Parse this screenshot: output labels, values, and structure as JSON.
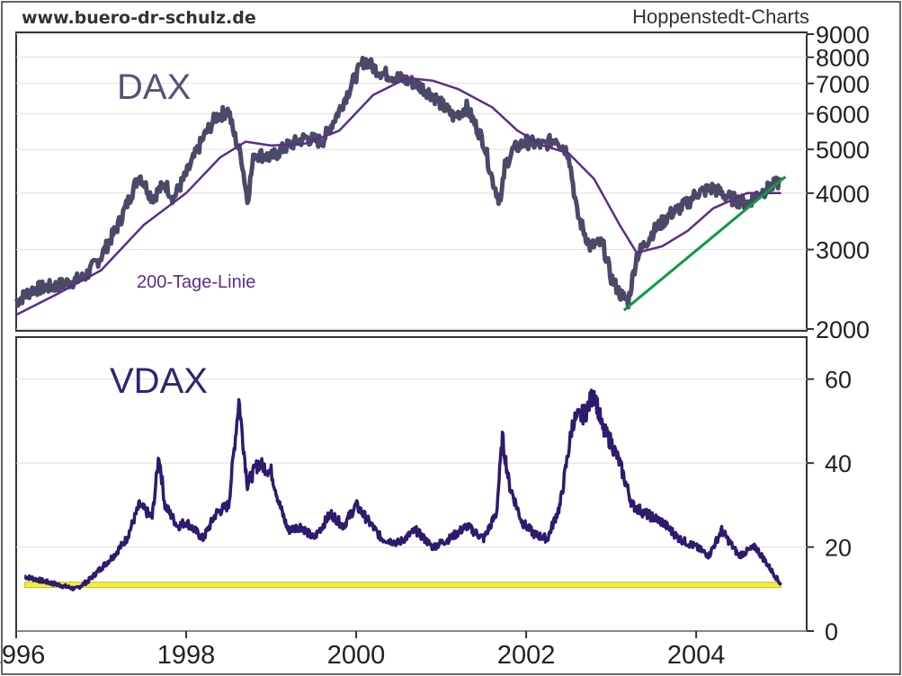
{
  "header": {
    "site": "www.buero-dr-schulz.de",
    "source": "Hoppenstedt-Charts"
  },
  "colors": {
    "dax_line": "#4a4a68",
    "ma_line": "#5a2e8a",
    "vdax_line": "#2e1a6e",
    "trend_line": "#119944",
    "floor_band": "#f2ee3a",
    "grid": "#dddddd",
    "frame": "#333333"
  },
  "x_axis": {
    "ticks": [
      "1996",
      "1998",
      "2000",
      "2002",
      "2004"
    ],
    "range": [
      1996,
      2005.3
    ]
  },
  "chart_data": [
    {
      "type": "line",
      "title": "DAX",
      "y_scale": "log",
      "ylim": [
        2000,
        9000
      ],
      "y_ticks": [
        "2000",
        "3000",
        "4000",
        "5000",
        "6000",
        "7000",
        "8000",
        "9000"
      ],
      "grid": true,
      "annotation": "200-Tage-Linie",
      "series": [
        {
          "name": "DAX",
          "x": [
            1996.0,
            1996.2,
            1996.5,
            1996.8,
            1997.0,
            1997.2,
            1997.45,
            1997.6,
            1997.75,
            1997.85,
            1998.0,
            1998.2,
            1998.35,
            1998.5,
            1998.55,
            1998.65,
            1998.72,
            1998.8,
            1999.0,
            1999.2,
            1999.4,
            1999.6,
            1999.8,
            2000.0,
            2000.1,
            2000.2,
            2000.3,
            2000.5,
            2000.7,
            2000.9,
            2001.0,
            2001.15,
            2001.3,
            2001.5,
            2001.6,
            2001.7,
            2001.75,
            2001.85,
            2002.0,
            2002.2,
            2002.35,
            2002.5,
            2002.6,
            2002.75,
            2002.9,
            2003.0,
            2003.1,
            2003.2,
            2003.3,
            2003.5,
            2003.7,
            2003.9,
            2004.0,
            2004.2,
            2004.4,
            2004.6,
            2004.7,
            2004.9,
            2005.0
          ],
          "y": [
            2300,
            2450,
            2500,
            2600,
            2900,
            3400,
            4400,
            3900,
            4200,
            3900,
            4400,
            5300,
            5900,
            6100,
            5500,
            4800,
            3850,
            4900,
            4800,
            5100,
            5300,
            5200,
            6100,
            7300,
            7900,
            7600,
            7400,
            7200,
            7000,
            6600,
            6300,
            5900,
            6200,
            5200,
            4300,
            3800,
            4600,
            5000,
            5200,
            5100,
            5300,
            4900,
            3600,
            3050,
            3100,
            2600,
            2400,
            2300,
            2900,
            3300,
            3600,
            3800,
            4000,
            4100,
            3900,
            3800,
            3950,
            4150,
            4250
          ]
        },
        {
          "name": "200-Tage-Linie",
          "x": [
            1996.0,
            1996.5,
            1997.0,
            1997.5,
            1998.0,
            1998.4,
            1998.7,
            1999.0,
            1999.4,
            1999.8,
            2000.2,
            2000.6,
            2000.9,
            2001.2,
            2001.6,
            2001.9,
            2002.2,
            2002.5,
            2002.8,
            2003.1,
            2003.3,
            2003.6,
            2003.9,
            2004.2,
            2004.6,
            2005.0
          ],
          "y": [
            2150,
            2400,
            2700,
            3400,
            4000,
            4800,
            5200,
            5100,
            5150,
            5500,
            6600,
            7200,
            7100,
            6800,
            6200,
            5500,
            5100,
            4900,
            4300,
            3400,
            2950,
            3050,
            3300,
            3700,
            4000,
            4000
          ]
        },
        {
          "name": "Trend",
          "x": [
            2003.15,
            2005.05
          ],
          "y": [
            2200,
            4350
          ]
        }
      ]
    },
    {
      "type": "line",
      "title": "VDAX",
      "ylim": [
        0,
        70
      ],
      "y_ticks": [
        "0",
        "20",
        "40",
        "60"
      ],
      "grid": true,
      "series": [
        {
          "name": "VDAX",
          "x": [
            1996.1,
            1996.3,
            1996.5,
            1996.7,
            1996.85,
            1997.0,
            1997.15,
            1997.3,
            1997.45,
            1997.6,
            1997.68,
            1997.75,
            1997.9,
            1998.0,
            1998.2,
            1998.35,
            1998.5,
            1998.62,
            1998.72,
            1998.85,
            1999.0,
            1999.1,
            1999.2,
            1999.35,
            1999.5,
            1999.7,
            1999.85,
            2000.0,
            2000.15,
            2000.3,
            2000.5,
            2000.7,
            2000.9,
            2001.1,
            2001.3,
            2001.5,
            2001.65,
            2001.72,
            2001.8,
            2001.95,
            2002.1,
            2002.25,
            2002.4,
            2002.55,
            2002.7,
            2002.8,
            2002.9,
            2003.0,
            2003.1,
            2003.25,
            2003.4,
            2003.6,
            2003.8,
            2004.0,
            2004.15,
            2004.3,
            2004.5,
            2004.7,
            2004.9,
            2005.0
          ],
          "y": [
            13,
            12,
            11,
            10,
            12,
            15,
            18,
            22,
            30,
            27,
            42,
            30,
            25,
            26,
            22,
            28,
            30,
            55,
            35,
            40,
            38,
            30,
            24,
            25,
            22,
            28,
            25,
            30,
            26,
            22,
            21,
            24,
            20,
            22,
            25,
            22,
            28,
            46,
            35,
            26,
            23,
            22,
            30,
            50,
            52,
            57,
            48,
            45,
            40,
            30,
            28,
            26,
            22,
            20,
            18,
            24,
            18,
            20,
            14,
            11
          ]
        },
        {
          "name": "Band",
          "x": [
            1996.1,
            2005.0
          ],
          "y": [
            11,
            11
          ]
        }
      ]
    }
  ]
}
